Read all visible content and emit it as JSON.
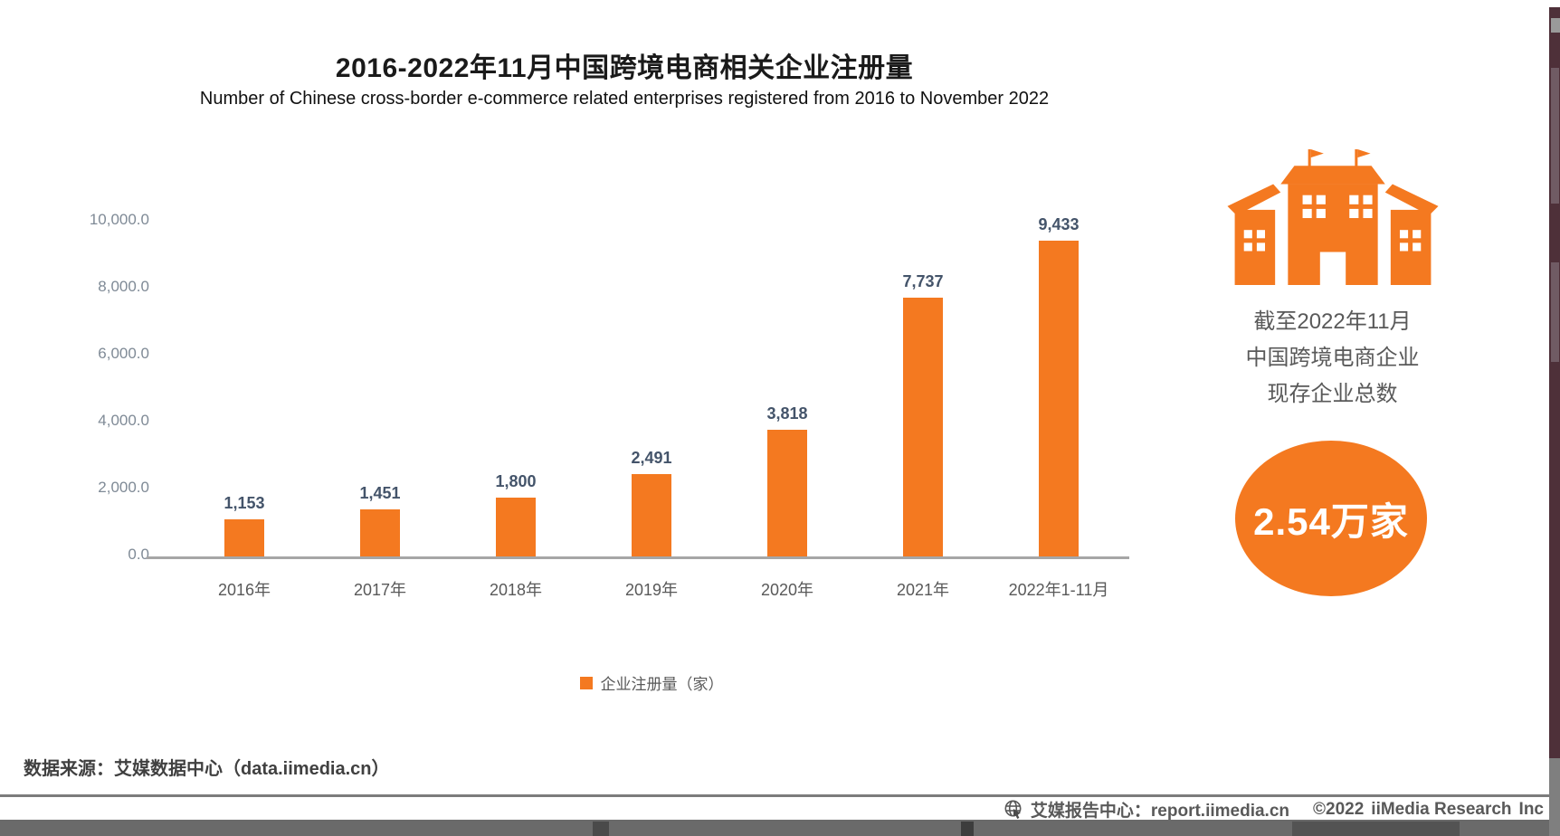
{
  "page": {
    "title": "2016-2022年11月中国跨境电商相关企业注册量",
    "subtitle": "Number of Chinese cross-border e-commerce related enterprises registered from 2016 to November 2022"
  },
  "chart_data": {
    "type": "bar",
    "title": "2016-2022年11月中国跨境电商相关企业注册量",
    "categories": [
      "2016年",
      "2017年",
      "2018年",
      "2019年",
      "2020年",
      "2021年",
      "2022年1-11月"
    ],
    "values": [
      1153,
      1451,
      1800,
      2491,
      3818,
      7737,
      9433
    ],
    "value_labels": [
      "1,153",
      "1,451",
      "1,800",
      "2,491",
      "3,818",
      "7,737",
      "9,433"
    ],
    "ylim": [
      0,
      10000
    ],
    "ytick_labels": [
      "10,000.0",
      "8,000.0",
      "6,000.0",
      "4,000.0",
      "2,000.0",
      "0.0"
    ],
    "legend": [
      "企业注册量（家）"
    ],
    "legend_position": "bottom",
    "grid": false,
    "bar_color": "#F47920",
    "value_label_color": "#44546A"
  },
  "stat_panel": {
    "icon": "building-icon",
    "caption_lines": [
      "截至2022年11月",
      "中国跨境电商企业",
      "现存企业总数"
    ],
    "value": "2.54万家"
  },
  "source_note": "数据来源：艾媒数据中心（data.iimedia.cn）",
  "footer": {
    "icon": "globe-icon",
    "site_label": "艾媒报告中心：report.iimedia.cn",
    "copyright": "©2022",
    "company": "iiMedia Research",
    "inc": "Inc"
  },
  "colors": {
    "accent": "#F47920",
    "axis_text": "#7F8A96",
    "value_text": "#44546A",
    "body_text": "#595959"
  }
}
